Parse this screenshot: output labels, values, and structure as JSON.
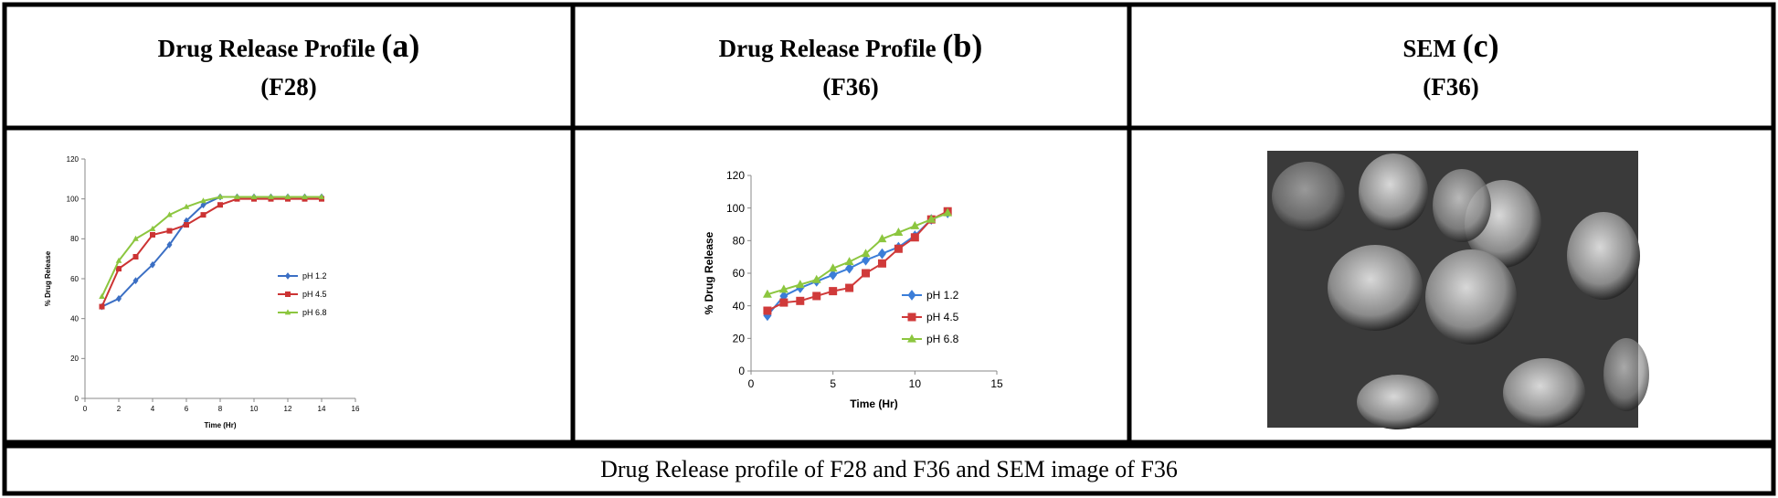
{
  "header": [
    {
      "title": "Drug Release Profile",
      "letter": "(a)",
      "sample": "(F28)"
    },
    {
      "title": "Drug Release Profile",
      "letter": "(b)",
      "sample": "(F36)"
    },
    {
      "title": "SEM",
      "letter": "(c)",
      "sample": "(F36)"
    }
  ],
  "chart_data": [
    {
      "type": "line",
      "x_label": "Time (Hr)",
      "y_label": "% Drug Release",
      "x": [
        1,
        2,
        3,
        4,
        5,
        6,
        7,
        8,
        9,
        10,
        11,
        12,
        13,
        14
      ],
      "xlim": [
        0,
        16
      ],
      "xticks": [
        0,
        2,
        4,
        6,
        8,
        10,
        12,
        14,
        16
      ],
      "ylim": [
        0,
        120
      ],
      "yticks": [
        0,
        20,
        40,
        60,
        80,
        100,
        120
      ],
      "series": [
        {
          "name": "pH 1.2",
          "color": "#3b6fc4",
          "values": [
            46,
            50,
            59,
            67,
            77,
            89,
            97,
            101,
            101,
            101,
            101,
            101,
            101,
            101
          ]
        },
        {
          "name": "pH 4.5",
          "color": "#cc3333",
          "values": [
            46,
            65,
            71,
            82,
            84,
            87,
            92,
            97,
            100,
            100,
            100,
            100,
            100,
            100
          ]
        },
        {
          "name": "pH 6.8",
          "color": "#8cc63f",
          "values": [
            51,
            69,
            80,
            85,
            92,
            96,
            99,
            101,
            101,
            101,
            101,
            101,
            101,
            101
          ]
        }
      ]
    },
    {
      "type": "line",
      "x_label": "Time (Hr)",
      "y_label": "% Drug Release",
      "x": [
        1,
        2,
        3,
        4,
        5,
        6,
        7,
        8,
        9,
        10,
        11,
        12
      ],
      "xlim": [
        0,
        15
      ],
      "xticks": [
        0,
        5,
        10,
        15
      ],
      "ylim": [
        0,
        120
      ],
      "yticks": [
        0,
        20,
        40,
        60,
        80,
        100,
        120
      ],
      "series": [
        {
          "name": "pH 1.2",
          "color": "#3b7dd8",
          "values": [
            34,
            46,
            51,
            55,
            59,
            63,
            68,
            72,
            76,
            83,
            93,
            97
          ]
        },
        {
          "name": "pH 4.5",
          "color": "#d03a3a",
          "values": [
            37,
            42,
            43,
            46,
            49,
            51,
            60,
            66,
            75,
            82,
            93,
            98
          ]
        },
        {
          "name": "pH 6.8",
          "color": "#8cc63f",
          "values": [
            47,
            50,
            53,
            56,
            63,
            67,
            72,
            81,
            85,
            89,
            93,
            97
          ]
        }
      ]
    }
  ],
  "caption": "Drug Release profile of F28 and F36 and SEM image of F36"
}
